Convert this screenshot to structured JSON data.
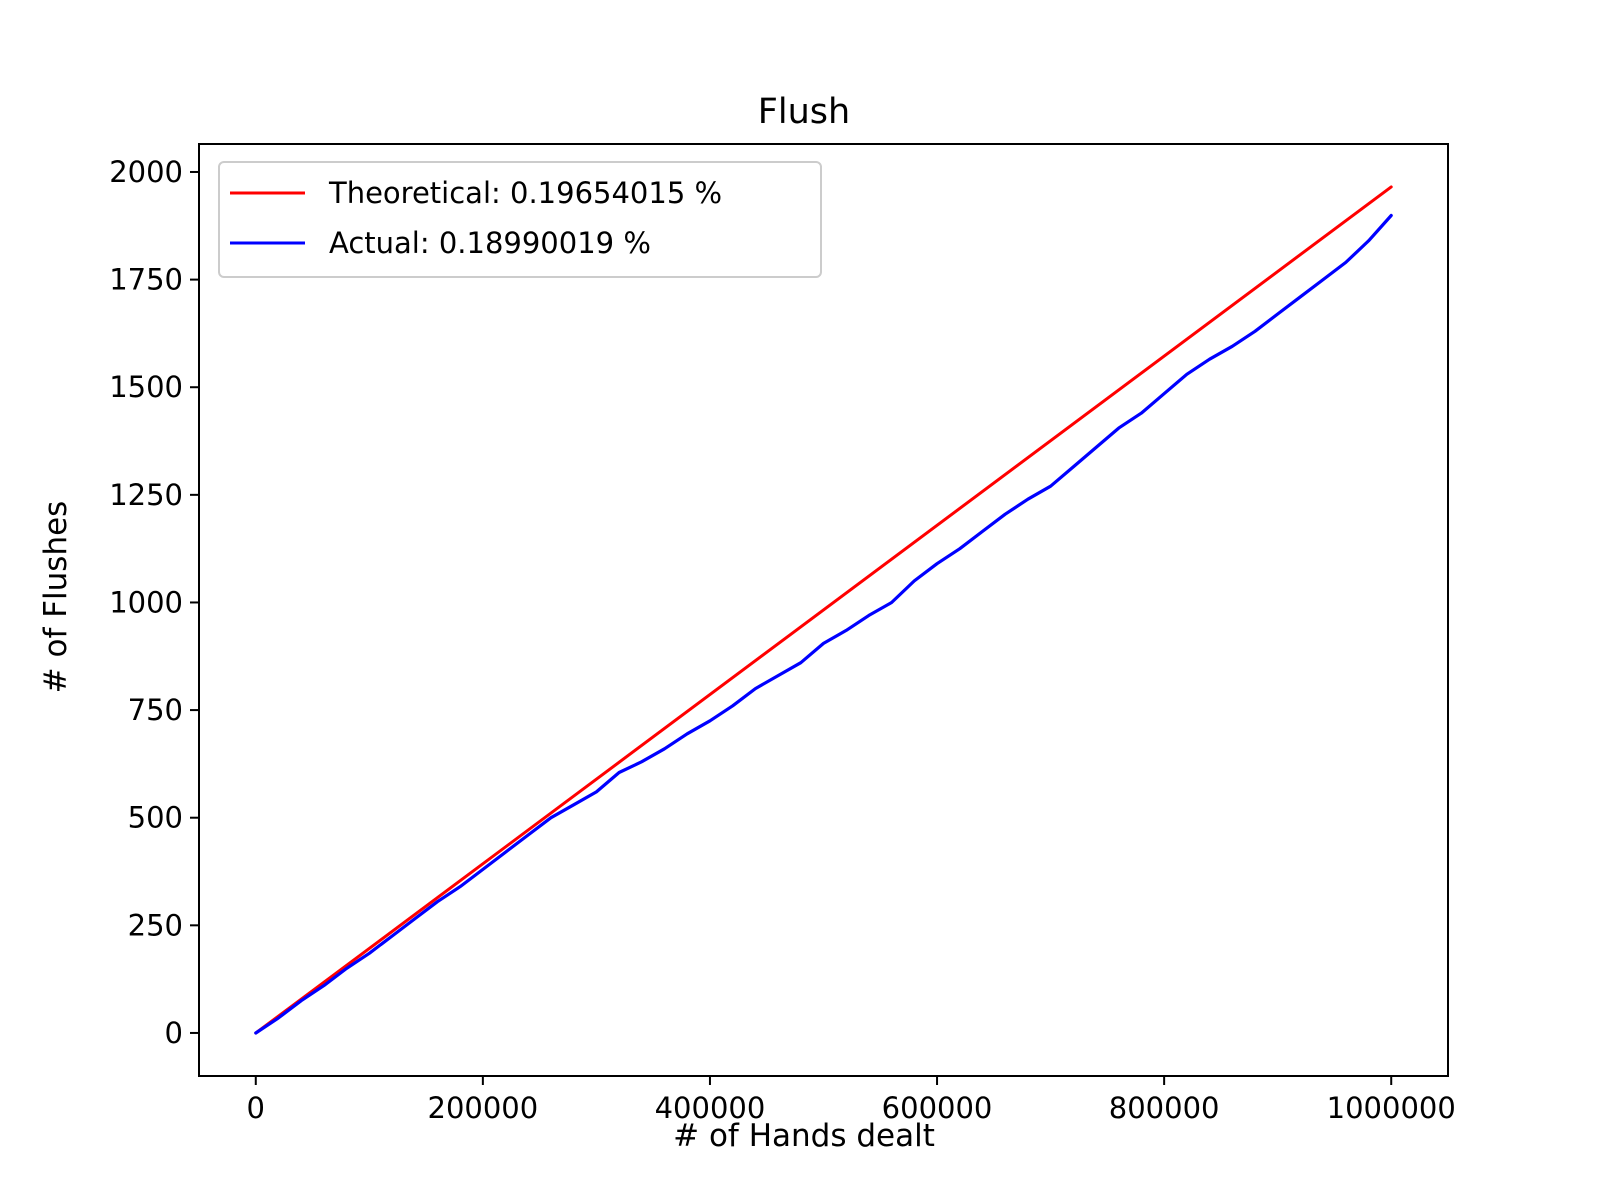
{
  "chart_data": {
    "type": "line",
    "title": "Flush",
    "xlabel": "# of Hands dealt",
    "ylabel": "# of Flushes",
    "xlim": [
      -50000,
      1050000
    ],
    "ylim": [
      -100,
      2065
    ],
    "xticks": [
      0,
      200000,
      400000,
      600000,
      800000,
      1000000
    ],
    "xtick_labels": [
      "0",
      "200000",
      "400000",
      "600000",
      "800000",
      "1000000"
    ],
    "yticks": [
      0,
      250,
      500,
      750,
      1000,
      1250,
      1500,
      1750,
      2000
    ],
    "ytick_labels": [
      "0",
      "250",
      "500",
      "750",
      "1000",
      "1250",
      "1500",
      "1750",
      "2000"
    ],
    "grid": false,
    "legend_position": "upper-left",
    "series": [
      {
        "name": "Theoretical: 0.19654015 %",
        "color": "#ff0000",
        "x": [
          0,
          1000000
        ],
        "y": [
          0,
          1965.4
        ]
      },
      {
        "name": "Actual: 0.18990019 %",
        "color": "#0000ff",
        "x": [
          0,
          20000,
          40000,
          60000,
          80000,
          100000,
          120000,
          140000,
          160000,
          180000,
          200000,
          220000,
          240000,
          260000,
          280000,
          300000,
          320000,
          340000,
          360000,
          380000,
          400000,
          420000,
          440000,
          460000,
          480000,
          500000,
          520000,
          540000,
          560000,
          580000,
          600000,
          620000,
          640000,
          660000,
          680000,
          700000,
          720000,
          740000,
          760000,
          780000,
          800000,
          820000,
          840000,
          860000,
          880000,
          900000,
          920000,
          940000,
          960000,
          980000,
          1000000
        ],
        "y": [
          0,
          35,
          75,
          110,
          150,
          185,
          225,
          265,
          305,
          340,
          380,
          420,
          460,
          500,
          530,
          560,
          605,
          630,
          660,
          695,
          725,
          760,
          800,
          830,
          860,
          905,
          935,
          970,
          1000,
          1050,
          1090,
          1125,
          1165,
          1205,
          1240,
          1270,
          1315,
          1360,
          1405,
          1440,
          1485,
          1530,
          1565,
          1595,
          1630,
          1670,
          1710,
          1750,
          1790,
          1840,
          1899
        ]
      }
    ]
  }
}
